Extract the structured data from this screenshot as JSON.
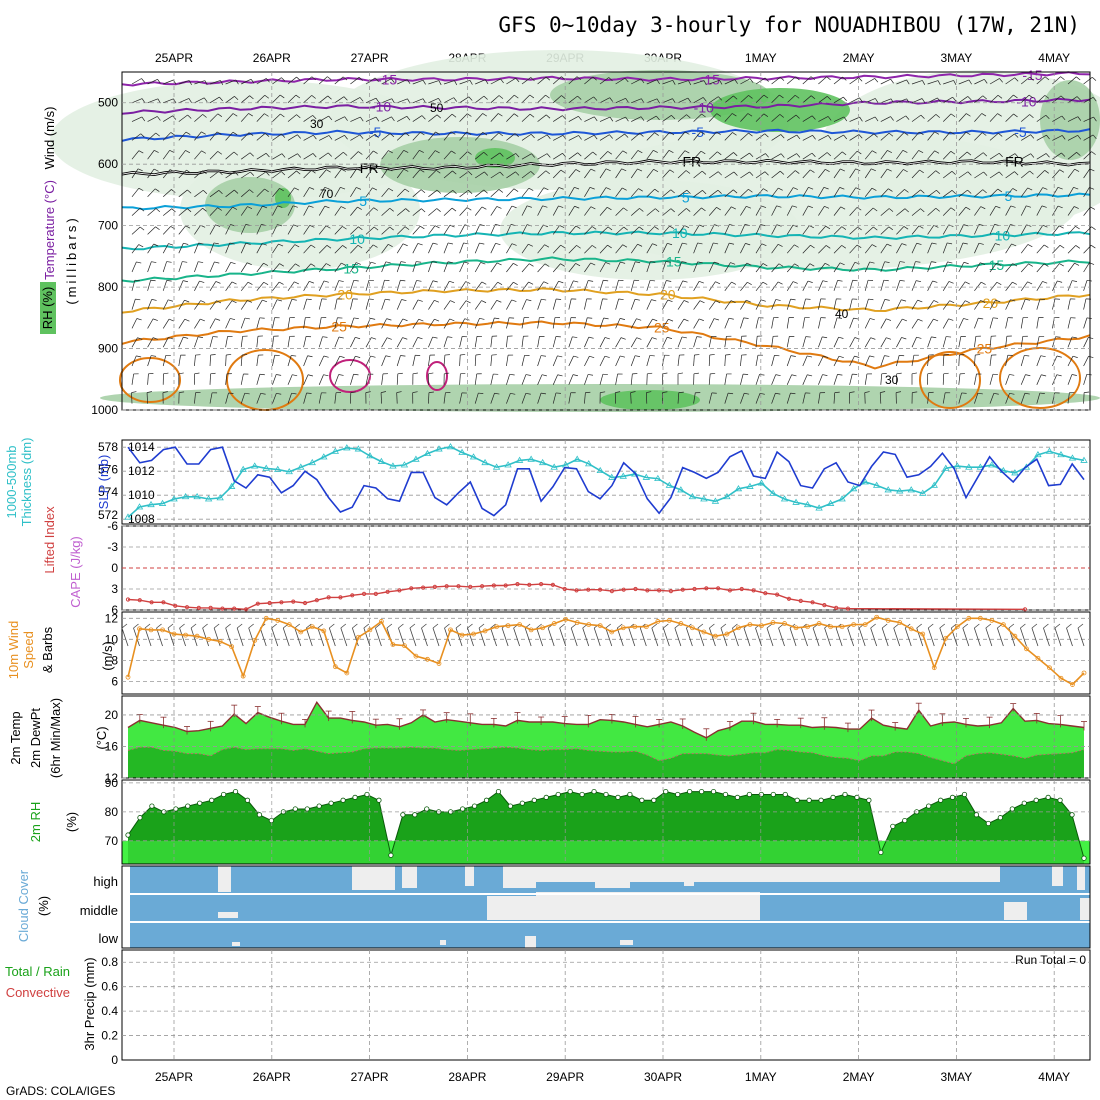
{
  "title": "GFS 0~10day 3-hourly for NOUADHIBOU (17W, 21N)",
  "footer": "GrADS: COLA/IGES",
  "colors": {
    "temperature_15": "#8e24aa",
    "temperature_10": "#7b1fa2",
    "temperature_5": "#1e56d6",
    "temperature_m5": "#0aa0d8",
    "temperature_m10": "#14b4b4",
    "temperature_m15": "#18b48a",
    "temperature_20": "#e0a020",
    "temperature_25": "#e07a10",
    "rh_light": "#e2efe2",
    "rh_mid": "#a6cfa6",
    "rh_dark": "#5fc25f",
    "slp": "#1f3cd0",
    "thickness": "#30c0c8",
    "lifted": "#d04040",
    "wind_speed": "#e89020",
    "temp2m": "#42e842",
    "dew2m": "#24b824",
    "rh2m_light": "#44f244",
    "rh2m_dark": "#1aa21a",
    "cloud": "#6aaad6",
    "cloud_clear": "#eeeeee"
  },
  "chart_data": [
    {
      "type": "contour",
      "name_key": "upper_air",
      "ylabel_lines": [
        "Wind (m/s)",
        "Temperature (°C)",
        "RH (%)",
        "(millibars)"
      ],
      "x_ticks": [
        "25APR",
        "26APR",
        "27APR",
        "28APR",
        "29APR",
        "30APR",
        "1MAY",
        "2MAY",
        "3MAY",
        "4MAY"
      ],
      "y_ticks": [
        500,
        600,
        700,
        800,
        900,
        1000
      ],
      "ylim": [
        1000,
        450
      ],
      "isotherms": [
        {
          "label": "-15",
          "color_key": "temperature_15",
          "pressure": [
            470,
            466,
            462,
            462,
            460,
            462,
            460,
            458,
            455,
            452
          ]
        },
        {
          "label": "-10",
          "color_key": "temperature_10",
          "pressure": [
            516,
            510,
            506,
            508,
            510,
            508,
            506,
            500,
            498,
            495
          ]
        },
        {
          "label": "-5",
          "color_key": "temperature_5",
          "pressure": [
            560,
            552,
            548,
            550,
            550,
            548,
            546,
            548,
            548,
            545
          ]
        },
        {
          "label": "FR",
          "color_key": "temperature_fr",
          "pressure": [
            616,
            612,
            606,
            606,
            600,
            596,
            596,
            598,
            596,
            600
          ]
        },
        {
          "label": "5",
          "color_key": "temperature_m5",
          "pressure": [
            672,
            668,
            660,
            658,
            656,
            654,
            652,
            654,
            652,
            650
          ]
        },
        {
          "label": "10",
          "color_key": "temperature_m10",
          "pressure": [
            738,
            730,
            722,
            716,
            712,
            712,
            716,
            720,
            716,
            712
          ]
        },
        {
          "label": "15",
          "color_key": "temperature_m15",
          "pressure": [
            790,
            780,
            770,
            760,
            754,
            758,
            768,
            772,
            764,
            758
          ]
        },
        {
          "label": "20",
          "color_key": "temperature_20",
          "pressure": [
            840,
            822,
            812,
            806,
            804,
            812,
            830,
            838,
            826,
            812
          ]
        },
        {
          "label": "25",
          "color_key": "temperature_25",
          "pressure": [
            890,
            872,
            864,
            860,
            858,
            866,
            896,
            930,
            900,
            880
          ]
        }
      ],
      "contour_labels": [
        "50",
        "30",
        "70",
        "40",
        "30"
      ]
    },
    {
      "type": "line",
      "name_key": "slp_thickness",
      "ylabel_lines": [
        "1000-500mb",
        "Thickness (dm)",
        "SLP (mb)"
      ],
      "y_ticks_left": [
        572,
        574,
        576,
        578
      ],
      "y_ticks_right": [
        1008,
        1010,
        1012,
        1014
      ],
      "series": [
        {
          "name": "SLP (mb)",
          "color_key": "slp",
          "axis": "right",
          "values": [
            1014.0,
            1012.7,
            1012.9,
            1013.8,
            1014.0,
            1012.6,
            1012.6,
            1013.8,
            1014.0,
            1011.2,
            1010.6,
            1011.7,
            1011.5,
            1010.2,
            1010.8,
            1012.0,
            1011.3,
            1009.8,
            1008.6,
            1009.0,
            1010.8,
            1010.6,
            1009.7,
            1009.5,
            1011.9,
            1011.9,
            1009.8,
            1009.2,
            1010.2,
            1011.1,
            1008.9,
            1008.3,
            1009.2,
            1012.2,
            1012.2,
            1009.5,
            1010.7,
            1012.3,
            1012.2,
            1010.3,
            1009.7,
            1010.8,
            1012.7,
            1011.8,
            1009.7,
            1008.5,
            1009.8,
            1012.3,
            1011.9,
            1011.4,
            1011.9,
            1013.2,
            1013.7,
            1011.6,
            1011.4,
            1013.6,
            1012.8,
            1010.8,
            1010.6,
            1012.2,
            1012.7,
            1011.1,
            1010.8,
            1012.4,
            1013.6,
            1013.4,
            1011.5,
            1011.7,
            1012.4,
            1013.5,
            1012.2,
            1009.8,
            1011.5,
            1013.2,
            1012.0,
            1011.1,
            1012.3,
            1013.0,
            1010.8,
            1010.9,
            1012.6,
            1011.3
          ]
        },
        {
          "name": "1000-500mb Thickness (dm)",
          "color_key": "thickness",
          "axis": "left",
          "values": [
            571.8,
            572.7,
            572.9,
            573.0,
            573.4,
            573.6,
            573.6,
            573.4,
            573.5,
            574.5,
            576.0,
            576.3,
            576.1,
            576.0,
            575.8,
            576.2,
            576.6,
            577.1,
            577.6,
            577.9,
            577.8,
            577.2,
            576.7,
            576.3,
            576.4,
            576.9,
            577.4,
            577.8,
            578.0,
            577.5,
            577.1,
            576.6,
            576.2,
            576.4,
            576.8,
            576.9,
            576.6,
            576.2,
            576.4,
            576.9,
            576.5,
            575.9,
            575.3,
            575.4,
            575.6,
            575.3,
            575.2,
            574.6,
            574.2,
            573.6,
            573.4,
            573.2,
            573.6,
            574.3,
            574.5,
            574.8,
            573.9,
            573.4,
            573.1,
            572.9,
            572.6,
            573.0,
            573.4,
            574.3,
            574.9,
            574.6,
            574.2,
            574.1,
            574.2,
            573.9,
            574.6,
            576.1,
            576.3,
            576.2,
            576.2,
            576.4,
            575.9,
            575.7,
            576.2,
            577.3,
            577.6,
            577.3,
            577.0,
            576.8
          ]
        }
      ]
    },
    {
      "type": "line",
      "name_key": "lifted_index",
      "ylabel_lines": [
        "Lifted Index",
        "CAPE (J/kg)"
      ],
      "y_ticks": [
        -6,
        -3,
        0,
        3,
        6
      ],
      "series": [
        {
          "name": "Lifted Index",
          "color_key": "lifted",
          "values": [
            4.5,
            4.6,
            4.9,
            4.9,
            5.4,
            5.6,
            5.7,
            5.7,
            5.8,
            5.8,
            5.9,
            5.1,
            5.0,
            4.9,
            4.8,
            5.0,
            4.6,
            4.2,
            4.2,
            3.9,
            3.7,
            3.7,
            3.4,
            3.2,
            2.9,
            2.8,
            2.7,
            2.6,
            2.6,
            2.7,
            2.6,
            2.5,
            2.5,
            2.3,
            2.4,
            2.3,
            2.4,
            3.0,
            3.2,
            3.1,
            3.1,
            3.3,
            3.1,
            3.0,
            3.2,
            3.2,
            3.3,
            3.1,
            3.0,
            2.9,
            2.9,
            3.2,
            3.0,
            3.2,
            3.6,
            3.8,
            4.4,
            4.7,
            4.9,
            5.3,
            5.7,
            5.8,
            6.3,
            6.6,
            6.5,
            6.7,
            6.3,
            6.4,
            6.5,
            6.4,
            6.8,
            6.9,
            7.0,
            6.8,
            6.9,
            7.0,
            5.9,
            6.2,
            6.9,
            7.0,
            7.0,
            7.0
          ]
        }
      ]
    },
    {
      "type": "line",
      "name_key": "wind10m",
      "ylabel_lines": [
        "10m Wind",
        "Speed",
        "& Barbs",
        "(m/s)"
      ],
      "y_ticks": [
        6,
        8,
        10,
        12
      ],
      "series": [
        {
          "name": "10m Wind Speed",
          "color_key": "wind_speed",
          "values": [
            6.4,
            11.0,
            10.9,
            10.9,
            10.5,
            10.4,
            10.3,
            10.0,
            9.8,
            9.3,
            6.5,
            9.9,
            12.0,
            11.8,
            11.4,
            10.7,
            11.2,
            10.8,
            7.4,
            6.8,
            10.2,
            10.9,
            11.7,
            9.5,
            9.4,
            8.4,
            8.1,
            7.7,
            10.9,
            10.4,
            10.5,
            10.8,
            11.2,
            11.3,
            11.4,
            10.9,
            11.1,
            11.5,
            11.9,
            11.6,
            11.4,
            11.3,
            10.7,
            11.1,
            11.2,
            11.2,
            11.7,
            11.8,
            11.5,
            11.1,
            10.7,
            10.3,
            10.5,
            11.1,
            11.4,
            11.3,
            11.6,
            11.5,
            11.1,
            11.2,
            11.5,
            11.2,
            11.2,
            11.4,
            11.4,
            12.1,
            11.8,
            11.6,
            11.0,
            10.5,
            7.3,
            10.1,
            11.2,
            12.0,
            12.0,
            11.8,
            11.4,
            10.3,
            9.1,
            8.2,
            7.3,
            6.3,
            5.7,
            6.8
          ]
        }
      ]
    },
    {
      "type": "area",
      "name_key": "temp2m",
      "ylabel_lines": [
        "2m Temp",
        "2m DewPt",
        "(6hr Min/Max)",
        "(°C)"
      ],
      "y_ticks": [
        12,
        16,
        20
      ],
      "series": [
        {
          "name": "2m Temp",
          "color_key": "temp2m",
          "values": [
            18.4,
            19.3,
            19.0,
            18.7,
            18.4,
            17.9,
            18.0,
            18.3,
            18.6,
            20.1,
            18.9,
            20.3,
            19.7,
            19.2,
            18.8,
            18.8,
            21.6,
            19.6,
            19.6,
            19.3,
            19.1,
            18.7,
            18.8,
            18.5,
            19.0,
            20.0,
            19.1,
            19.4,
            19.2,
            19.0,
            18.8,
            18.8,
            18.6,
            19.3,
            19.1,
            19.1,
            19.1,
            18.9,
            18.8,
            18.8,
            19.4,
            19.3,
            19.1,
            18.8,
            18.5,
            18.8,
            19.1,
            18.6,
            17.8,
            17.1,
            18.0,
            18.4,
            19.2,
            19.2,
            18.8,
            18.8,
            18.7,
            18.7,
            18.4,
            18.5,
            18.4,
            18.2,
            18.2,
            19.6,
            18.7,
            18.4,
            18.2,
            20.6,
            18.6,
            19.0,
            19.1,
            18.8,
            18.6,
            18.7,
            19.0,
            20.8,
            19.2,
            19.3,
            18.9,
            18.8,
            18.6,
            18.4
          ]
        },
        {
          "name": "2m DewPt",
          "color_key": "dew2m",
          "values": [
            15.5,
            15.9,
            15.9,
            15.5,
            15.4,
            15.1,
            15.1,
            14.8,
            15.6,
            15.9,
            15.6,
            15.7,
            15.7,
            15.7,
            15.5,
            15.7,
            15.4,
            15.1,
            15.2,
            15.3,
            15.7,
            15.8,
            15.8,
            15.8,
            15.9,
            15.8,
            15.8,
            15.6,
            15.5,
            15.6,
            15.7,
            15.8,
            15.9,
            15.8,
            15.6,
            15.5,
            15.6,
            15.6,
            15.7,
            15.5,
            15.4,
            15.3,
            15.3,
            15.4,
            14.9,
            14.2,
            14.5,
            15.1,
            15.1,
            15.1,
            14.9,
            14.8,
            15.0,
            15.2,
            15.2,
            15.6,
            15.5,
            15.3,
            15.2,
            14.8,
            14.6,
            14.5,
            14.2,
            14.8,
            14.8,
            15.3,
            15.3,
            15.1,
            14.6,
            14.2,
            13.8,
            14.8,
            15.1,
            15.2,
            15.0,
            14.8,
            14.5,
            14.9,
            15.0,
            15.1,
            15.2,
            15.6
          ]
        }
      ]
    },
    {
      "type": "area",
      "name_key": "rh2m",
      "ylabel_lines": [
        "2m RH",
        "(%)"
      ],
      "y_ticks": [
        70,
        80,
        90
      ],
      "series": [
        {
          "name": "2m RH",
          "color_key": "rh2m_dark",
          "values": [
            72,
            78,
            82,
            80,
            81,
            82,
            83,
            84,
            86,
            87,
            84,
            79,
            77,
            80,
            81,
            81,
            82,
            83,
            84,
            85,
            86,
            84,
            65,
            79,
            79,
            81,
            80,
            80,
            81,
            82,
            84,
            87,
            82,
            83,
            84,
            85,
            86,
            87,
            86,
            87,
            86,
            85,
            86,
            84,
            84,
            87,
            86,
            87,
            87,
            87,
            86,
            85,
            86,
            86,
            86,
            86,
            84,
            84,
            84,
            85,
            86,
            85,
            84,
            66,
            75,
            77,
            80,
            82,
            84,
            85,
            86,
            79,
            76,
            78,
            81,
            83,
            84,
            85,
            84,
            79,
            64
          ]
        }
      ]
    },
    {
      "type": "heatmap",
      "name_key": "cloud",
      "ylabel_lines": [
        "Cloud Cover",
        "(%)"
      ],
      "categories": [
        "high",
        "middle",
        "low"
      ]
    },
    {
      "type": "bar",
      "name_key": "precip",
      "ylabel_lines": [
        "Total / Rain",
        "Convective",
        "3hr Precip (mm)"
      ],
      "y_ticks": [
        "0",
        "0.2",
        "0.4",
        "0.6",
        "0.8"
      ],
      "ylim": [
        0,
        0.9
      ],
      "annotation": "Run Total = 0",
      "values": []
    }
  ]
}
